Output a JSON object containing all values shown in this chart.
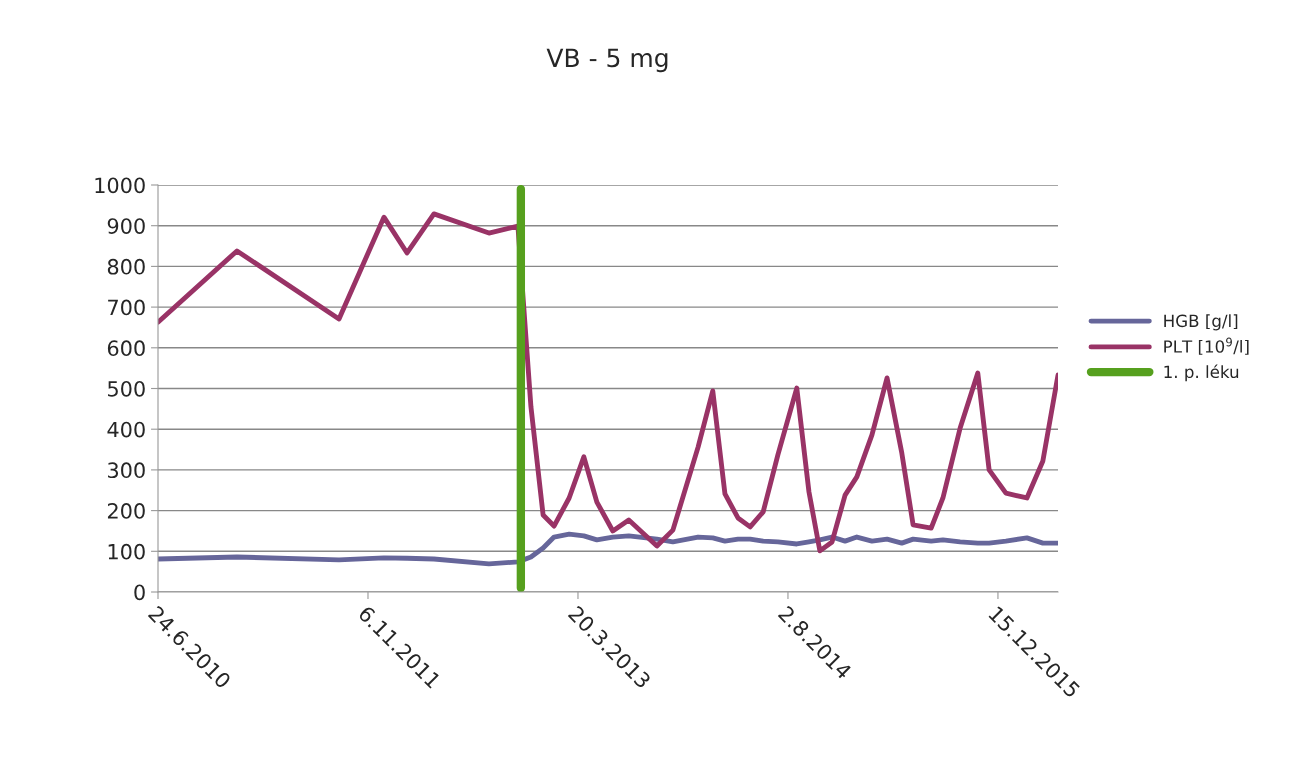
{
  "chart_data": {
    "type": "line",
    "title": "VB - 5 mg",
    "x": [
      "2010-06-24",
      "2010-12-29",
      "2011-08-29",
      "2011-12-14",
      "2012-02-07",
      "2012-04-11",
      "2012-08-20",
      "2012-10-28",
      "2012-11-28",
      "2012-12-27",
      "2013-01-22",
      "2013-02-27",
      "2013-04-03",
      "2013-05-04",
      "2013-06-11",
      "2013-07-19",
      "2013-09-24",
      "2013-11-01",
      "2013-12-31",
      "2014-02-04",
      "2014-03-05",
      "2014-04-05",
      "2014-05-04",
      "2014-06-04",
      "2014-07-09",
      "2014-08-23",
      "2014-09-21",
      "2014-10-17",
      "2014-11-15",
      "2014-12-16",
      "2015-01-13",
      "2015-02-18",
      "2015-03-26",
      "2015-04-30",
      "2015-05-27",
      "2015-07-09",
      "2015-08-06",
      "2015-09-16",
      "2015-10-28",
      "2015-11-24",
      "2016-01-03",
      "2016-02-22",
      "2016-03-31",
      "2016-05-06"
    ],
    "series": [
      {
        "name": "HGB [g/l]",
        "color": "#66669a",
        "values": [
          81,
          86,
          79,
          84,
          83,
          81,
          69,
          74,
          86,
          108,
          135,
          142,
          138,
          128,
          135,
          138,
          130,
          123,
          135,
          133,
          125,
          130,
          130,
          125,
          123,
          118,
          123,
          128,
          135,
          125,
          135,
          125,
          130,
          120,
          130,
          125,
          128,
          123,
          120,
          120,
          125,
          133,
          120,
          120
        ]
      },
      {
        "name": "PLT [10$^{9}$/l]",
        "color": "#993366",
        "values": [
          663,
          838,
          671,
          921,
          833,
          929,
          882,
          899,
          455,
          189,
          162,
          231,
          332,
          221,
          150,
          177,
          113,
          152,
          356,
          494,
          241,
          182,
          160,
          197,
          337,
          501,
          246,
          101,
          123,
          238,
          283,
          386,
          526,
          342,
          165,
          157,
          231,
          403,
          538,
          300,
          243,
          231,
          322,
          533
        ]
      },
      {
        "name": "1. p. léku",
        "color": "#56a01e",
        "x": [
          "2012-11-04",
          "2012-11-04"
        ],
        "values": [
          10,
          990
        ]
      }
    ],
    "xlim": [
      "2010-06-24",
      "2016-05-06"
    ],
    "xticks": [
      {
        "value": "2010-06-24",
        "label": "24.6.2010"
      },
      {
        "value": "2011-11-06",
        "label": "6.11.2011"
      },
      {
        "value": "2013-03-20",
        "label": "20.3.2013"
      },
      {
        "value": "2014-08-02",
        "label": "2.8.2014"
      },
      {
        "value": "2015-12-15",
        "label": "15.12.2015"
      }
    ],
    "ylim": [
      0,
      1000
    ],
    "yticks": [
      0,
      100,
      200,
      300,
      400,
      500,
      600,
      700,
      800,
      900,
      1000
    ],
    "grid": "y",
    "legend": "right",
    "marker": "none",
    "line_style": "solid"
  }
}
